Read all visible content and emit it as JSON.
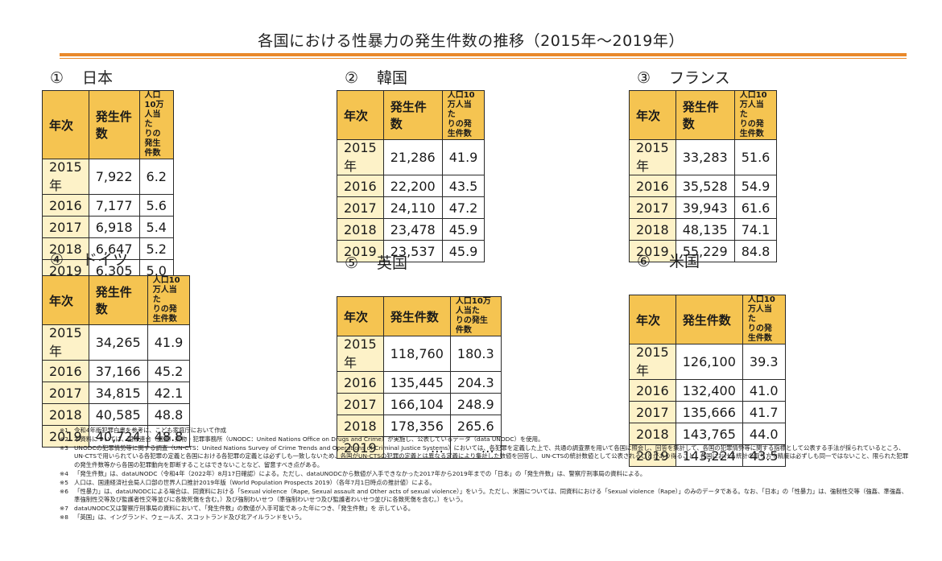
{
  "title": "各国における性暴力の発生件数の推移（2015年～2019年）",
  "headers": {
    "year": "年次",
    "cases": "発生件数",
    "rate_line1": "人口10万人当た",
    "rate_line2": "りの発生件数"
  },
  "colors": {
    "accent_rule": "#e9892a",
    "header_fill": "#f5c451",
    "year_fill": "#fdf2c8"
  },
  "countries": [
    {
      "num": "①",
      "name": "日本",
      "rows": [
        {
          "year": "2015年",
          "cases": "7,922",
          "rate": "6.2"
        },
        {
          "year": "2016",
          "cases": "7,177",
          "rate": "5.6"
        },
        {
          "year": "2017",
          "cases": "6,918",
          "rate": "5.4"
        },
        {
          "year": "2018",
          "cases": "6,647",
          "rate": "5.2"
        },
        {
          "year": "2019",
          "cases": "6,305",
          "rate": "5.0"
        }
      ]
    },
    {
      "num": "②",
      "name": "韓国",
      "rows": [
        {
          "year": "2015年",
          "cases": "21,286",
          "rate": "41.9"
        },
        {
          "year": "2016",
          "cases": "22,200",
          "rate": "43.5"
        },
        {
          "year": "2017",
          "cases": "24,110",
          "rate": "47.2"
        },
        {
          "year": "2018",
          "cases": "23,478",
          "rate": "45.9"
        },
        {
          "year": "2019",
          "cases": "23,537",
          "rate": "45.9"
        }
      ]
    },
    {
      "num": "③",
      "name": "フランス",
      "rows": [
        {
          "year": "2015年",
          "cases": "33,283",
          "rate": "51.6"
        },
        {
          "year": "2016",
          "cases": "35,528",
          "rate": "54.9"
        },
        {
          "year": "2017",
          "cases": "39,943",
          "rate": "61.6"
        },
        {
          "year": "2018",
          "cases": "48,135",
          "rate": "74.1"
        },
        {
          "year": "2019",
          "cases": "55,229",
          "rate": "84.8"
        }
      ]
    },
    {
      "num": "④",
      "name": "ドイツ",
      "rows": [
        {
          "year": "2015年",
          "cases": "34,265",
          "rate": "41.9"
        },
        {
          "year": "2016",
          "cases": "37,166",
          "rate": "45.2"
        },
        {
          "year": "2017",
          "cases": "34,815",
          "rate": "42.1"
        },
        {
          "year": "2018",
          "cases": "40,585",
          "rate": "48.8"
        },
        {
          "year": "2019",
          "cases": "40,724",
          "rate": "48.8"
        }
      ]
    },
    {
      "num": "⑤",
      "name": "英国",
      "rows": [
        {
          "year": "2015年",
          "cases": "118,760",
          "rate": "180.3"
        },
        {
          "year": "2016",
          "cases": "135,445",
          "rate": "204.3"
        },
        {
          "year": "2017",
          "cases": "166,104",
          "rate": "248.9"
        },
        {
          "year": "2018",
          "cases": "178,356",
          "rate": "265.6"
        },
        {
          "year": "2019",
          "cases": "…",
          "rate": "…"
        }
      ]
    },
    {
      "num": "⑥",
      "name": "米国",
      "rows": [
        {
          "year": "2015年",
          "cases": "126,100",
          "rate": "39.3"
        },
        {
          "year": "2016",
          "cases": "132,400",
          "rate": "41.0"
        },
        {
          "year": "2017",
          "cases": "135,666",
          "rate": "41.7"
        },
        {
          "year": "2018",
          "cases": "143,765",
          "rate": "44.0"
        },
        {
          "year": "2019",
          "cases": "143,224",
          "rate": "43.5"
        }
      ]
    }
  ],
  "notes": [
    {
      "mark": "※1",
      "text": "令和4年版犯罪白書を参考に、こども家庭庁において作成"
    },
    {
      "mark": "※2",
      "text": "本資料については、国際連合（国連）薬物・犯罪事務所（UNODC：United Nations Office on Drugs and Crime）が実施し、公表しているデータ（data UNODC）を使用。"
    },
    {
      "mark": "※3",
      "text": "UNODCの犯罪情勢等に関する調査（UN-CTS：United Nations Survey of Crime Trends and Operations of Criminal Justice Systems）においては、各犯罪を定義した上で、共通の調査票を用いて各国に照会し、回答を集計して、各国の犯罪情勢等に関する指標として公表する手法が採られているところ、UN-CTSで用いられている各犯罪の定義と各国における各犯罪の定義とは必ずしも一致しないため、各国がUN-CTSの犯罪の定義とは異なる定義により集計した数値を回答し、UN-CTSの統計数値として公表されることがあり得ること、各国における統計の取り方や精度は必ずしも同一ではないこと、限られた犯罪の発生件数等から各国の犯罪動向を即断することはできないことなど、留意すべき点がある。"
    },
    {
      "mark": "※4",
      "text": "「発生件数」は、dataUNODC（令和4年（2022年）8月17日確認）による。ただし、dataUNODCから数値が入手できなかった2017年から2019年までの「日本」の「発生件数」は、警察庁刑事局の資料による。"
    },
    {
      "mark": "※5",
      "text": "人口は、国連経済社会局人口部の世界人口推計2019年版（World Population Prospects 2019）（各年7月1日時点の推計値）による。"
    },
    {
      "mark": "※6",
      "text": "「性暴力」は、dataUNODCによる場合は、同資料における「Sexual violence（Rape, Sexual assault and Other acts of sexual violence）」をいう。ただし、米国については、同資料における「Sexual violence（Rape）」のみのデータである。なお、「日本」の「性暴力」は、強制性交等（強姦、準強姦、準強制性交等及び監護者性交等並びに各致死傷を含む。）及び強制わいせつ（準強制わいせつ及び監護者わいせつ並びに各致死傷を含む。）をいう。"
    },
    {
      "mark": "※7",
      "text": "dataUNODC又は警察庁刑事局の資料において、「発生件数」の数値が入手可能であった年につき、「発生件数」を 示している。"
    },
    {
      "mark": "※8",
      "text": "「英国」は、イングランド、ウェールズ、スコットランド及び北アイルランドをいう。"
    }
  ]
}
